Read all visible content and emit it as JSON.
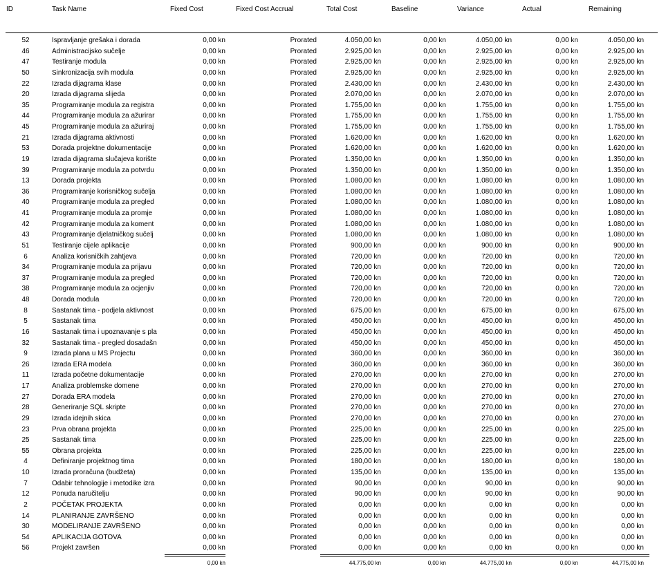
{
  "columns": {
    "id": "ID",
    "task_name": "Task Name",
    "fixed_cost": "Fixed Cost",
    "fixed_cost_accrual": "Fixed Cost Accrual",
    "total_cost": "Total Cost",
    "baseline": "Baseline",
    "variance": "Variance",
    "actual": "Actual",
    "remaining": "Remaining"
  },
  "rows": [
    {
      "id": "52",
      "name": "Ispravljanje grešaka i dorada",
      "fixed": "0,00 kn",
      "accrual": "Prorated",
      "total": "4.050,00 kn",
      "baseline": "0,00 kn",
      "variance": "4.050,00 kn",
      "actual": "0,00 kn",
      "remaining": "4.050,00 kn"
    },
    {
      "id": "46",
      "name": "Administracijsko sučelje",
      "fixed": "0,00 kn",
      "accrual": "Prorated",
      "total": "2.925,00 kn",
      "baseline": "0,00 kn",
      "variance": "2.925,00 kn",
      "actual": "0,00 kn",
      "remaining": "2.925,00 kn"
    },
    {
      "id": "47",
      "name": "Testiranje modula",
      "fixed": "0,00 kn",
      "accrual": "Prorated",
      "total": "2.925,00 kn",
      "baseline": "0,00 kn",
      "variance": "2.925,00 kn",
      "actual": "0,00 kn",
      "remaining": "2.925,00 kn"
    },
    {
      "id": "50",
      "name": "Sinkronizacija svih modula",
      "fixed": "0,00 kn",
      "accrual": "Prorated",
      "total": "2.925,00 kn",
      "baseline": "0,00 kn",
      "variance": "2.925,00 kn",
      "actual": "0,00 kn",
      "remaining": "2.925,00 kn"
    },
    {
      "id": "22",
      "name": "Izrada dijagrama klase",
      "fixed": "0,00 kn",
      "accrual": "Prorated",
      "total": "2.430,00 kn",
      "baseline": "0,00 kn",
      "variance": "2.430,00 kn",
      "actual": "0,00 kn",
      "remaining": "2.430,00 kn"
    },
    {
      "id": "20",
      "name": "Izrada dijagrama slijeda",
      "fixed": "0,00 kn",
      "accrual": "Prorated",
      "total": "2.070,00 kn",
      "baseline": "0,00 kn",
      "variance": "2.070,00 kn",
      "actual": "0,00 kn",
      "remaining": "2.070,00 kn"
    },
    {
      "id": "35",
      "name": "Programiranje modula za registra",
      "fixed": "0,00 kn",
      "accrual": "Prorated",
      "total": "1.755,00 kn",
      "baseline": "0,00 kn",
      "variance": "1.755,00 kn",
      "actual": "0,00 kn",
      "remaining": "1.755,00 kn"
    },
    {
      "id": "44",
      "name": "Programiranje modula za ažurirar",
      "fixed": "0,00 kn",
      "accrual": "Prorated",
      "total": "1.755,00 kn",
      "baseline": "0,00 kn",
      "variance": "1.755,00 kn",
      "actual": "0,00 kn",
      "remaining": "1.755,00 kn"
    },
    {
      "id": "45",
      "name": "Programiranje modula za ažuriraj",
      "fixed": "0,00 kn",
      "accrual": "Prorated",
      "total": "1.755,00 kn",
      "baseline": "0,00 kn",
      "variance": "1.755,00 kn",
      "actual": "0,00 kn",
      "remaining": "1.755,00 kn"
    },
    {
      "id": "21",
      "name": "Izrada dijagrama aktivnosti",
      "fixed": "0,00 kn",
      "accrual": "Prorated",
      "total": "1.620,00 kn",
      "baseline": "0,00 kn",
      "variance": "1.620,00 kn",
      "actual": "0,00 kn",
      "remaining": "1.620,00 kn"
    },
    {
      "id": "53",
      "name": "Dorada projektne dokumentacije",
      "fixed": "0,00 kn",
      "accrual": "Prorated",
      "total": "1.620,00 kn",
      "baseline": "0,00 kn",
      "variance": "1.620,00 kn",
      "actual": "0,00 kn",
      "remaining": "1.620,00 kn"
    },
    {
      "id": "19",
      "name": "Izrada dijagrama slučajeva korište",
      "fixed": "0,00 kn",
      "accrual": "Prorated",
      "total": "1.350,00 kn",
      "baseline": "0,00 kn",
      "variance": "1.350,00 kn",
      "actual": "0,00 kn",
      "remaining": "1.350,00 kn"
    },
    {
      "id": "39",
      "name": "Programiranje modula za potvrdu",
      "fixed": "0,00 kn",
      "accrual": "Prorated",
      "total": "1.350,00 kn",
      "baseline": "0,00 kn",
      "variance": "1.350,00 kn",
      "actual": "0,00 kn",
      "remaining": "1.350,00 kn"
    },
    {
      "id": "13",
      "name": "Dorada projekta",
      "fixed": "0,00 kn",
      "accrual": "Prorated",
      "total": "1.080,00 kn",
      "baseline": "0,00 kn",
      "variance": "1.080,00 kn",
      "actual": "0,00 kn",
      "remaining": "1.080,00 kn"
    },
    {
      "id": "36",
      "name": "Programiranje korisničkog sučelja",
      "fixed": "0,00 kn",
      "accrual": "Prorated",
      "total": "1.080,00 kn",
      "baseline": "0,00 kn",
      "variance": "1.080,00 kn",
      "actual": "0,00 kn",
      "remaining": "1.080,00 kn"
    },
    {
      "id": "40",
      "name": "Programiranje modula za pregled",
      "fixed": "0,00 kn",
      "accrual": "Prorated",
      "total": "1.080,00 kn",
      "baseline": "0,00 kn",
      "variance": "1.080,00 kn",
      "actual": "0,00 kn",
      "remaining": "1.080,00 kn"
    },
    {
      "id": "41",
      "name": "Programiranje modula za promje",
      "fixed": "0,00 kn",
      "accrual": "Prorated",
      "total": "1.080,00 kn",
      "baseline": "0,00 kn",
      "variance": "1.080,00 kn",
      "actual": "0,00 kn",
      "remaining": "1.080,00 kn"
    },
    {
      "id": "42",
      "name": "Programiranje modula za koment",
      "fixed": "0,00 kn",
      "accrual": "Prorated",
      "total": "1.080,00 kn",
      "baseline": "0,00 kn",
      "variance": "1.080,00 kn",
      "actual": "0,00 kn",
      "remaining": "1.080,00 kn"
    },
    {
      "id": "43",
      "name": "Programiranje djelatničkog sučelj",
      "fixed": "0,00 kn",
      "accrual": "Prorated",
      "total": "1.080,00 kn",
      "baseline": "0,00 kn",
      "variance": "1.080,00 kn",
      "actual": "0,00 kn",
      "remaining": "1.080,00 kn"
    },
    {
      "id": "51",
      "name": "Testiranje cijele aplikacije",
      "fixed": "0,00 kn",
      "accrual": "Prorated",
      "total": "900,00 kn",
      "baseline": "0,00 kn",
      "variance": "900,00 kn",
      "actual": "0,00 kn",
      "remaining": "900,00 kn"
    },
    {
      "id": "6",
      "name": "Analiza korisničkih zahtjeva",
      "fixed": "0,00 kn",
      "accrual": "Prorated",
      "total": "720,00 kn",
      "baseline": "0,00 kn",
      "variance": "720,00 kn",
      "actual": "0,00 kn",
      "remaining": "720,00 kn"
    },
    {
      "id": "34",
      "name": "Programiranje modula za prijavu",
      "fixed": "0,00 kn",
      "accrual": "Prorated",
      "total": "720,00 kn",
      "baseline": "0,00 kn",
      "variance": "720,00 kn",
      "actual": "0,00 kn",
      "remaining": "720,00 kn"
    },
    {
      "id": "37",
      "name": "Programiranje modula za pregled",
      "fixed": "0,00 kn",
      "accrual": "Prorated",
      "total": "720,00 kn",
      "baseline": "0,00 kn",
      "variance": "720,00 kn",
      "actual": "0,00 kn",
      "remaining": "720,00 kn"
    },
    {
      "id": "38",
      "name": "Programiranje modula za ocjenjiv",
      "fixed": "0,00 kn",
      "accrual": "Prorated",
      "total": "720,00 kn",
      "baseline": "0,00 kn",
      "variance": "720,00 kn",
      "actual": "0,00 kn",
      "remaining": "720,00 kn"
    },
    {
      "id": "48",
      "name": "Dorada modula",
      "fixed": "0,00 kn",
      "accrual": "Prorated",
      "total": "720,00 kn",
      "baseline": "0,00 kn",
      "variance": "720,00 kn",
      "actual": "0,00 kn",
      "remaining": "720,00 kn"
    },
    {
      "id": "8",
      "name": "Sastanak tima - podjela aktivnost",
      "fixed": "0,00 kn",
      "accrual": "Prorated",
      "total": "675,00 kn",
      "baseline": "0,00 kn",
      "variance": "675,00 kn",
      "actual": "0,00 kn",
      "remaining": "675,00 kn"
    },
    {
      "id": "5",
      "name": "Sastanak tima",
      "fixed": "0,00 kn",
      "accrual": "Prorated",
      "total": "450,00 kn",
      "baseline": "0,00 kn",
      "variance": "450,00 kn",
      "actual": "0,00 kn",
      "remaining": "450,00 kn"
    },
    {
      "id": "16",
      "name": "Sastanak tima i upoznavanje s pla",
      "fixed": "0,00 kn",
      "accrual": "Prorated",
      "total": "450,00 kn",
      "baseline": "0,00 kn",
      "variance": "450,00 kn",
      "actual": "0,00 kn",
      "remaining": "450,00 kn"
    },
    {
      "id": "32",
      "name": "Sastanak tima - pregled dosadašn",
      "fixed": "0,00 kn",
      "accrual": "Prorated",
      "total": "450,00 kn",
      "baseline": "0,00 kn",
      "variance": "450,00 kn",
      "actual": "0,00 kn",
      "remaining": "450,00 kn"
    },
    {
      "id": "9",
      "name": "Izrada plana u MS Projectu",
      "fixed": "0,00 kn",
      "accrual": "Prorated",
      "total": "360,00 kn",
      "baseline": "0,00 kn",
      "variance": "360,00 kn",
      "actual": "0,00 kn",
      "remaining": "360,00 kn"
    },
    {
      "id": "26",
      "name": "Izrada ERA modela",
      "fixed": "0,00 kn",
      "accrual": "Prorated",
      "total": "360,00 kn",
      "baseline": "0,00 kn",
      "variance": "360,00 kn",
      "actual": "0,00 kn",
      "remaining": "360,00 kn"
    },
    {
      "id": "11",
      "name": "Izrada početne dokumentacije",
      "fixed": "0,00 kn",
      "accrual": "Prorated",
      "total": "270,00 kn",
      "baseline": "0,00 kn",
      "variance": "270,00 kn",
      "actual": "0,00 kn",
      "remaining": "270,00 kn"
    },
    {
      "id": "17",
      "name": "Analiza problemske domene",
      "fixed": "0,00 kn",
      "accrual": "Prorated",
      "total": "270,00 kn",
      "baseline": "0,00 kn",
      "variance": "270,00 kn",
      "actual": "0,00 kn",
      "remaining": "270,00 kn"
    },
    {
      "id": "27",
      "name": "Dorada ERA modela",
      "fixed": "0,00 kn",
      "accrual": "Prorated",
      "total": "270,00 kn",
      "baseline": "0,00 kn",
      "variance": "270,00 kn",
      "actual": "0,00 kn",
      "remaining": "270,00 kn"
    },
    {
      "id": "28",
      "name": "Generiranje SQL skripte",
      "fixed": "0,00 kn",
      "accrual": "Prorated",
      "total": "270,00 kn",
      "baseline": "0,00 kn",
      "variance": "270,00 kn",
      "actual": "0,00 kn",
      "remaining": "270,00 kn"
    },
    {
      "id": "29",
      "name": "Izrada idejnih skica",
      "fixed": "0,00 kn",
      "accrual": "Prorated",
      "total": "270,00 kn",
      "baseline": "0,00 kn",
      "variance": "270,00 kn",
      "actual": "0,00 kn",
      "remaining": "270,00 kn"
    },
    {
      "id": "23",
      "name": "Prva obrana projekta",
      "fixed": "0,00 kn",
      "accrual": "Prorated",
      "total": "225,00 kn",
      "baseline": "0,00 kn",
      "variance": "225,00 kn",
      "actual": "0,00 kn",
      "remaining": "225,00 kn"
    },
    {
      "id": "25",
      "name": "Sastanak tima",
      "fixed": "0,00 kn",
      "accrual": "Prorated",
      "total": "225,00 kn",
      "baseline": "0,00 kn",
      "variance": "225,00 kn",
      "actual": "0,00 kn",
      "remaining": "225,00 kn"
    },
    {
      "id": "55",
      "name": "Obrana projekta",
      "fixed": "0,00 kn",
      "accrual": "Prorated",
      "total": "225,00 kn",
      "baseline": "0,00 kn",
      "variance": "225,00 kn",
      "actual": "0,00 kn",
      "remaining": "225,00 kn"
    },
    {
      "id": "4",
      "name": "Definiranje projektnog tima",
      "fixed": "0,00 kn",
      "accrual": "Prorated",
      "total": "180,00 kn",
      "baseline": "0,00 kn",
      "variance": "180,00 kn",
      "actual": "0,00 kn",
      "remaining": "180,00 kn"
    },
    {
      "id": "10",
      "name": "Izrada proračuna (budžeta)",
      "fixed": "0,00 kn",
      "accrual": "Prorated",
      "total": "135,00 kn",
      "baseline": "0,00 kn",
      "variance": "135,00 kn",
      "actual": "0,00 kn",
      "remaining": "135,00 kn"
    },
    {
      "id": "7",
      "name": "Odabir tehnologije i metodike izra",
      "fixed": "0,00 kn",
      "accrual": "Prorated",
      "total": "90,00 kn",
      "baseline": "0,00 kn",
      "variance": "90,00 kn",
      "actual": "0,00 kn",
      "remaining": "90,00 kn"
    },
    {
      "id": "12",
      "name": "Ponuda naručitelju",
      "fixed": "0,00 kn",
      "accrual": "Prorated",
      "total": "90,00 kn",
      "baseline": "0,00 kn",
      "variance": "90,00 kn",
      "actual": "0,00 kn",
      "remaining": "90,00 kn"
    },
    {
      "id": "2",
      "name": "POČETAK PROJEKTA",
      "fixed": "0,00 kn",
      "accrual": "Prorated",
      "total": "0,00 kn",
      "baseline": "0,00 kn",
      "variance": "0,00 kn",
      "actual": "0,00 kn",
      "remaining": "0,00 kn"
    },
    {
      "id": "14",
      "name": "PLANIRANJE ZAVRŠENO",
      "fixed": "0,00 kn",
      "accrual": "Prorated",
      "total": "0,00 kn",
      "baseline": "0,00 kn",
      "variance": "0,00 kn",
      "actual": "0,00 kn",
      "remaining": "0,00 kn"
    },
    {
      "id": "30",
      "name": "MODELIRANJE ZAVRŠENO",
      "fixed": "0,00 kn",
      "accrual": "Prorated",
      "total": "0,00 kn",
      "baseline": "0,00 kn",
      "variance": "0,00 kn",
      "actual": "0,00 kn",
      "remaining": "0,00 kn"
    },
    {
      "id": "54",
      "name": "APLIKACIJA GOTOVA",
      "fixed": "0,00 kn",
      "accrual": "Prorated",
      "total": "0,00 kn",
      "baseline": "0,00 kn",
      "variance": "0,00 kn",
      "actual": "0,00 kn",
      "remaining": "0,00 kn"
    },
    {
      "id": "56",
      "name": "Projekt završen",
      "fixed": "0,00 kn",
      "accrual": "Prorated",
      "total": "0,00 kn",
      "baseline": "0,00 kn",
      "variance": "0,00 kn",
      "actual": "0,00 kn",
      "remaining": "0,00 kn"
    }
  ],
  "totals": {
    "fixed": "0,00 kn",
    "total": "44.775,00 kn",
    "baseline": "0,00 kn",
    "variance": "44.775,00 kn",
    "actual": "0,00 kn",
    "remaining": "44.775,00 kn"
  }
}
